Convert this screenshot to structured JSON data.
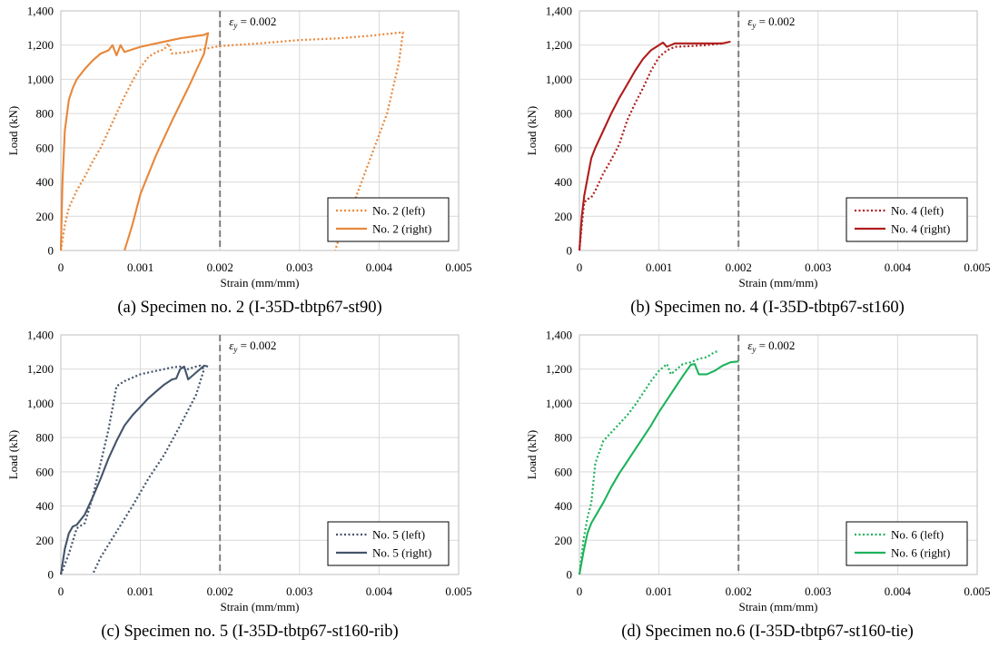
{
  "chart_data": [
    {
      "type": "line",
      "caption": "(a) Specimen no. 2 (I-35D-tbtp67-st90)",
      "xlabel": "Strain (mm/mm)",
      "ylabel": "Load (kN)",
      "xlim": [
        0,
        0.005
      ],
      "ylim": [
        0,
        1400
      ],
      "xticks": [
        "0",
        "0.001",
        "0.002",
        "0.003",
        "0.004",
        "0.005"
      ],
      "yticks": [
        "0",
        "200",
        "400",
        "600",
        "800",
        "1,000",
        "1,200",
        "1,400"
      ],
      "refline": {
        "x": 0.002,
        "label_sym": "ε",
        "label_sub": "y",
        "label_rest": " = 0.002"
      },
      "legend_position": "bottom-right",
      "series": [
        {
          "name": "No. 2 (left)",
          "color": "#E8873A",
          "dash": "dotted",
          "x": [
            0,
            5e-05,
            0.0001,
            0.0002,
            0.0003,
            0.0004,
            0.0005,
            0.0006,
            0.0007,
            0.0008,
            0.0009,
            0.001,
            0.0011,
            0.0012,
            0.0013,
            0.00135,
            0.0014,
            0.0016,
            0.002,
            0.0025,
            0.003,
            0.0035,
            0.0039,
            0.0042,
            0.0043,
            0.00425,
            0.0041,
            0.0039,
            0.0037,
            0.0035,
            0.00345
          ],
          "y": [
            0,
            150,
            250,
            350,
            430,
            520,
            600,
            700,
            800,
            900,
            990,
            1070,
            1130,
            1160,
            1175,
            1210,
            1150,
            1160,
            1195,
            1210,
            1230,
            1240,
            1255,
            1270,
            1275,
            1100,
            800,
            550,
            300,
            80,
            0
          ]
        },
        {
          "name": "No. 2 (right)",
          "color": "#E8873A",
          "dash": "solid",
          "x": [
            0,
            2e-05,
            5e-05,
            0.0001,
            0.00015,
            0.0002,
            0.0003,
            0.0004,
            0.0005,
            0.0006,
            0.00065,
            0.0007,
            0.00075,
            0.0008,
            0.001,
            0.0012,
            0.0015,
            0.0018,
            0.00185,
            0.0018,
            0.0016,
            0.0014,
            0.0012,
            0.001,
            0.0009,
            0.0008
          ],
          "y": [
            0,
            400,
            700,
            880,
            950,
            1000,
            1060,
            1110,
            1150,
            1170,
            1200,
            1140,
            1200,
            1160,
            1190,
            1210,
            1240,
            1260,
            1270,
            1150,
            950,
            760,
            560,
            330,
            150,
            0
          ]
        }
      ]
    },
    {
      "type": "line",
      "caption": "(b) Specimen no. 4 (I-35D-tbtp67-st160)",
      "xlabel": "Strain (mm/mm)",
      "ylabel": "Load (kN)",
      "xlim": [
        0,
        0.005
      ],
      "ylim": [
        0,
        1400
      ],
      "xticks": [
        "0",
        "0.001",
        "0.002",
        "0.003",
        "0.004",
        "0.005"
      ],
      "yticks": [
        "0",
        "200",
        "400",
        "600",
        "800",
        "1,000",
        "1,200",
        "1,400"
      ],
      "refline": {
        "x": 0.002,
        "label_sym": "ε",
        "label_sub": "y",
        "label_rest": " = 0.002"
      },
      "legend_position": "bottom-right",
      "series": [
        {
          "name": "No. 4 (left)",
          "color": "#B01C1C",
          "dash": "dotted",
          "x": [
            0,
            3e-05,
            6e-05,
            0.0001,
            0.00015,
            0.0002,
            0.0003,
            0.0004,
            0.0005,
            0.0006,
            0.0007,
            0.0008,
            0.0009,
            0.001,
            0.0011,
            0.0012,
            0.0014,
            0.0016,
            0.0018
          ],
          "y": [
            0,
            150,
            280,
            300,
            310,
            350,
            450,
            530,
            620,
            760,
            860,
            950,
            1050,
            1130,
            1170,
            1190,
            1195,
            1200,
            1210
          ]
        },
        {
          "name": "No. 4 (right)",
          "color": "#B01C1C",
          "dash": "solid",
          "x": [
            0,
            3e-05,
            6e-05,
            0.0001,
            0.00015,
            0.0002,
            0.0003,
            0.0004,
            0.0005,
            0.0006,
            0.0007,
            0.0008,
            0.0009,
            0.001,
            0.00105,
            0.0011,
            0.0012,
            0.0014,
            0.0016,
            0.0018,
            0.0019
          ],
          "y": [
            0,
            200,
            320,
            420,
            540,
            600,
            700,
            800,
            890,
            970,
            1050,
            1120,
            1170,
            1200,
            1215,
            1190,
            1210,
            1210,
            1210,
            1210,
            1220
          ]
        }
      ]
    },
    {
      "type": "line",
      "caption": "(c) Specimen no. 5 (I-35D-tbtp67-st160-rib)",
      "xlabel": "Strain (mm/mm)",
      "ylabel": "Load (kN)",
      "xlim": [
        0,
        0.005
      ],
      "ylim": [
        0,
        1400
      ],
      "xticks": [
        "0",
        "0.001",
        "0.002",
        "0.003",
        "0.004",
        "0.005"
      ],
      "yticks": [
        "0",
        "200",
        "400",
        "600",
        "800",
        "1,000",
        "1,200",
        "1,400"
      ],
      "refline": {
        "x": 0.002,
        "label_sym": "ε",
        "label_sub": "y",
        "label_rest": " = 0.002"
      },
      "legend_position": "bottom-right",
      "series": [
        {
          "name": "No. 5 (left)",
          "color": "#44546A",
          "dash": "dotted",
          "x": [
            0,
            0.0001,
            0.0002,
            0.0003,
            0.0004,
            0.0005,
            0.0006,
            0.0007,
            0.0008,
            0.001,
            0.0012,
            0.0014,
            0.0015,
            0.0016,
            0.0017,
            0.00175,
            0.0018,
            0.0017,
            0.0015,
            0.0013,
            0.0011,
            0.0009,
            0.0007,
            0.0005,
            0.0004
          ],
          "y": [
            0,
            120,
            270,
            300,
            450,
            650,
            850,
            1100,
            1130,
            1170,
            1190,
            1210,
            1215,
            1200,
            1215,
            1220,
            1200,
            1050,
            870,
            700,
            560,
            400,
            250,
            100,
            0
          ]
        },
        {
          "name": "No. 5 (right)",
          "color": "#44546A",
          "dash": "solid",
          "x": [
            0,
            5e-05,
            0.0001,
            0.00015,
            0.0002,
            0.0003,
            0.0004,
            0.0005,
            0.0006,
            0.0007,
            0.0008,
            0.0009,
            0.001,
            0.0011,
            0.0012,
            0.0013,
            0.0014,
            0.00145,
            0.0015,
            0.00155,
            0.0016,
            0.0017,
            0.0018,
            0.00185
          ],
          "y": [
            0,
            150,
            240,
            280,
            290,
            350,
            450,
            560,
            680,
            780,
            870,
            930,
            980,
            1030,
            1070,
            1110,
            1140,
            1145,
            1200,
            1215,
            1140,
            1180,
            1220,
            1215
          ]
        }
      ]
    },
    {
      "type": "line",
      "caption": "(d) Specimen no.6 (I-35D-tbtp67-st160-tie)",
      "xlabel": "Strain (mm/mm)",
      "ylabel": "Load (kN)",
      "xlim": [
        0,
        0.005
      ],
      "ylim": [
        0,
        1400
      ],
      "xticks": [
        "0",
        "0.001",
        "0.002",
        "0.003",
        "0.004",
        "0.005"
      ],
      "yticks": [
        "0",
        "200",
        "400",
        "600",
        "800",
        "1,000",
        "1,200",
        "1,400"
      ],
      "refline": {
        "x": 0.002,
        "label_sym": "ε",
        "label_sub": "y",
        "label_rest": " = 0.002"
      },
      "legend_position": "bottom-right",
      "series": [
        {
          "name": "No. 6 (left)",
          "color": "#1DB35B",
          "dash": "dotted",
          "x": [
            0,
            5e-05,
            0.0001,
            0.00015,
            0.0002,
            0.0003,
            0.0004,
            0.0005,
            0.0006,
            0.0007,
            0.0008,
            0.0009,
            0.001,
            0.0011,
            0.00115,
            0.0012,
            0.0013,
            0.0014,
            0.0015,
            0.0016,
            0.0017,
            0.00175
          ],
          "y": [
            0,
            200,
            330,
            420,
            650,
            780,
            830,
            880,
            930,
            990,
            1060,
            1130,
            1190,
            1230,
            1170,
            1190,
            1230,
            1240,
            1260,
            1270,
            1300,
            1305
          ]
        },
        {
          "name": "No. 6 (right)",
          "color": "#1DB35B",
          "dash": "solid",
          "x": [
            0,
            5e-05,
            0.0001,
            0.00015,
            0.0002,
            0.0003,
            0.0004,
            0.0005,
            0.0006,
            0.0007,
            0.0008,
            0.0009,
            0.001,
            0.0011,
            0.0012,
            0.0013,
            0.0014,
            0.00145,
            0.0015,
            0.0016,
            0.0017,
            0.0018,
            0.0019,
            0.002
          ],
          "y": [
            0,
            130,
            240,
            300,
            340,
            420,
            510,
            590,
            660,
            730,
            800,
            870,
            950,
            1020,
            1090,
            1160,
            1225,
            1230,
            1170,
            1170,
            1190,
            1220,
            1240,
            1245
          ]
        }
      ]
    }
  ]
}
